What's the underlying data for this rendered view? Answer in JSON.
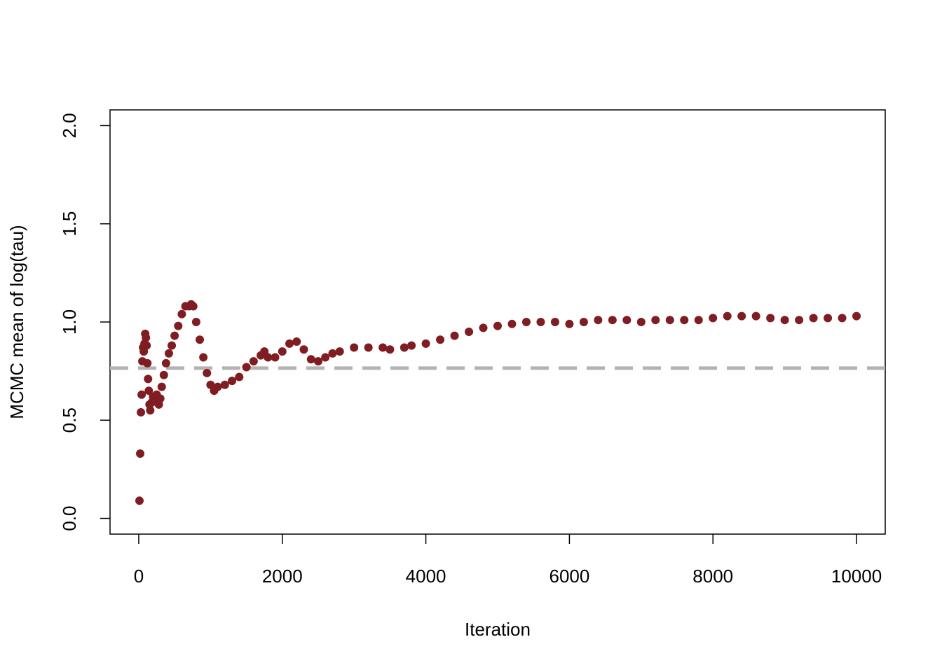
{
  "chart_data": {
    "type": "scatter",
    "x_label": "Iteration",
    "y_label": "MCMC mean of log(tau)",
    "color": "#7f1d22",
    "x": [
      10,
      20,
      30,
      40,
      50,
      60,
      70,
      80,
      90,
      100,
      110,
      120,
      130,
      140,
      150,
      160,
      180,
      200,
      220,
      250,
      280,
      300,
      320,
      350,
      380,
      420,
      460,
      500,
      550,
      600,
      650,
      700,
      730,
      760,
      800,
      850,
      900,
      950,
      1000,
      1050,
      1100,
      1200,
      1300,
      1400,
      1500,
      1600,
      1700,
      1750,
      1800,
      1900,
      2000,
      2100,
      2200,
      2300,
      2400,
      2500,
      2600,
      2700,
      2800,
      3000,
      3200,
      3400,
      3500,
      3700,
      3800,
      4000,
      4200,
      4400,
      4600,
      4800,
      5000,
      5200,
      5400,
      5600,
      5800,
      6000,
      6200,
      6400,
      6600,
      6800,
      7000,
      7200,
      7400,
      7600,
      7800,
      8000,
      8200,
      8400,
      8600,
      8800,
      9000,
      9200,
      9400,
      9600,
      9800,
      10000
    ],
    "values": [
      0.09,
      0.33,
      0.54,
      0.63,
      0.8,
      0.87,
      0.85,
      0.89,
      0.94,
      0.92,
      0.88,
      0.79,
      0.71,
      0.65,
      0.58,
      0.55,
      0.59,
      0.62,
      0.6,
      0.63,
      0.58,
      0.61,
      0.67,
      0.73,
      0.79,
      0.84,
      0.88,
      0.93,
      0.98,
      1.04,
      1.08,
      1.08,
      1.09,
      1.08,
      1.0,
      0.91,
      0.82,
      0.74,
      0.68,
      0.65,
      0.67,
      0.68,
      0.7,
      0.72,
      0.77,
      0.8,
      0.83,
      0.85,
      0.82,
      0.82,
      0.85,
      0.89,
      0.9,
      0.86,
      0.81,
      0.8,
      0.82,
      0.84,
      0.85,
      0.87,
      0.87,
      0.87,
      0.86,
      0.87,
      0.88,
      0.89,
      0.91,
      0.93,
      0.95,
      0.97,
      0.98,
      0.99,
      1.0,
      1.0,
      1.0,
      0.99,
      1.0,
      1.01,
      1.01,
      1.01,
      1.0,
      1.01,
      1.01,
      1.01,
      1.01,
      1.02,
      1.03,
      1.03,
      1.03,
      1.02,
      1.01,
      1.01,
      1.02,
      1.02,
      1.02,
      1.03
    ],
    "reference_line": {
      "value": 0.765,
      "color": "#b3b3b3"
    },
    "xlim": [
      -400,
      10400
    ],
    "ylim": [
      -0.08,
      2.08
    ],
    "xticks": [
      0,
      2000,
      4000,
      6000,
      8000,
      10000
    ],
    "yticks": [
      {
        "value": 0,
        "label": "0.0"
      },
      0.5,
      {
        "value": 1,
        "label": "1.0"
      },
      1.5,
      {
        "value": 2,
        "label": "2.0"
      }
    ]
  }
}
